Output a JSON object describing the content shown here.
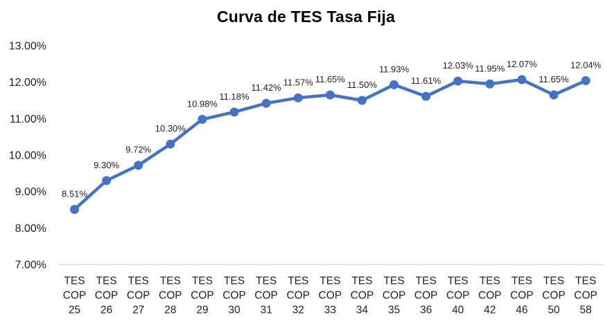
{
  "chart_data": {
    "type": "line",
    "title": "Curva de TES Tasa Fija",
    "categories": [
      "TES COP 25",
      "TES COP 26",
      "TES COP 27",
      "TES COP 28",
      "TES COP 29",
      "TES COP 30",
      "TES COP 31",
      "TES COP 32",
      "TES COP 33",
      "TES COP 34",
      "TES COP 35",
      "TES COP 36",
      "TES COP 40",
      "TES COP 42",
      "TES COP 46",
      "TES COP 50",
      "TES COP 58"
    ],
    "values": [
      8.51,
      9.3,
      9.72,
      10.3,
      10.98,
      11.18,
      11.42,
      11.57,
      11.65,
      11.5,
      11.93,
      11.61,
      12.03,
      11.95,
      12.07,
      11.65,
      12.04
    ],
    "data_labels": [
      "8.51%",
      "9.30%",
      "9.72%",
      "10.30%",
      "10.98%",
      "11.18%",
      "11.42%",
      "11.57%",
      "11.65%",
      "11.50%",
      "11.93%",
      "11.61%",
      "12.03%",
      "11.95%",
      "12.07%",
      "11.65%",
      "12.04%"
    ],
    "y_tick_labels": [
      "13.00%",
      "12.00%",
      "11.00%",
      "10.00%",
      "9.00%",
      "8.00%",
      "7.00%"
    ],
    "ylim": [
      7,
      13
    ],
    "xlabel": "",
    "ylabel": "",
    "grid": false,
    "legend": false,
    "series_color": "#4472C4",
    "axis_line_color": "#D9D9D9",
    "text_color": "#1f1f1f"
  }
}
